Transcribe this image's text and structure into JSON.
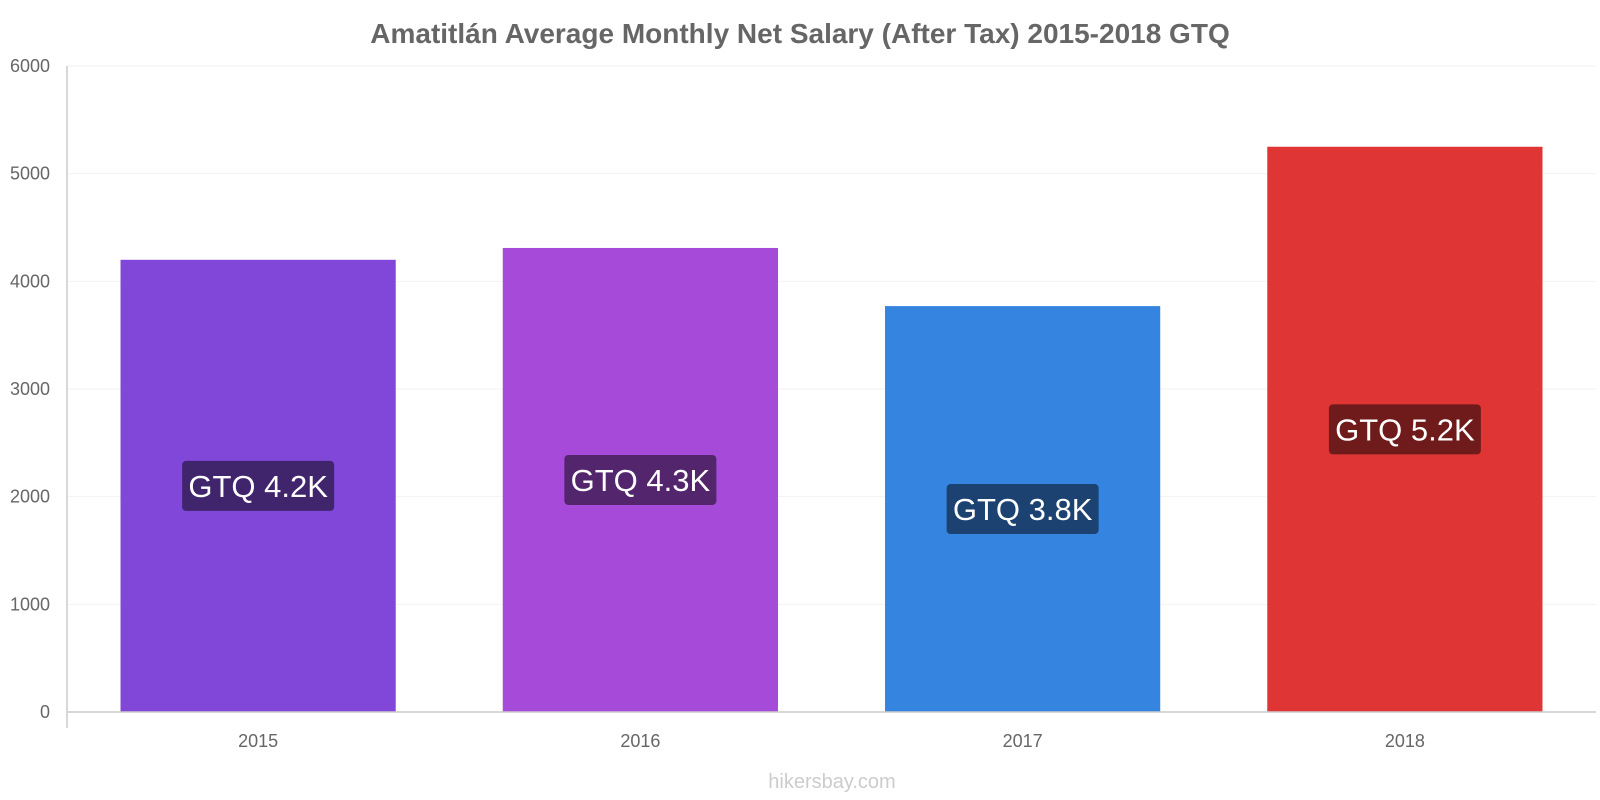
{
  "chart_data": {
    "type": "bar",
    "title": "Amatitlán Average Monthly Net Salary (After Tax) 2015-2018 GTQ",
    "categories": [
      "2015",
      "2016",
      "2017",
      "2018"
    ],
    "values": [
      4200,
      4310,
      3770,
      5250
    ],
    "data_labels": [
      "GTQ 4.2K",
      "GTQ 4.3K",
      "GTQ 3.8K",
      "GTQ 5.2K"
    ],
    "bar_colors": [
      "#8047d9",
      "#a64ad9",
      "#3584e0",
      "#e03535"
    ],
    "label_colors": [
      "#40246c",
      "#53256c",
      "#1b4270",
      "#701b1b"
    ],
    "ylim": [
      0,
      6000
    ],
    "yticks": [
      "0",
      "1000",
      "2000",
      "3000",
      "4000",
      "5000",
      "6000"
    ],
    "grid": true,
    "legend": "none"
  },
  "source": "hikersbay.com"
}
